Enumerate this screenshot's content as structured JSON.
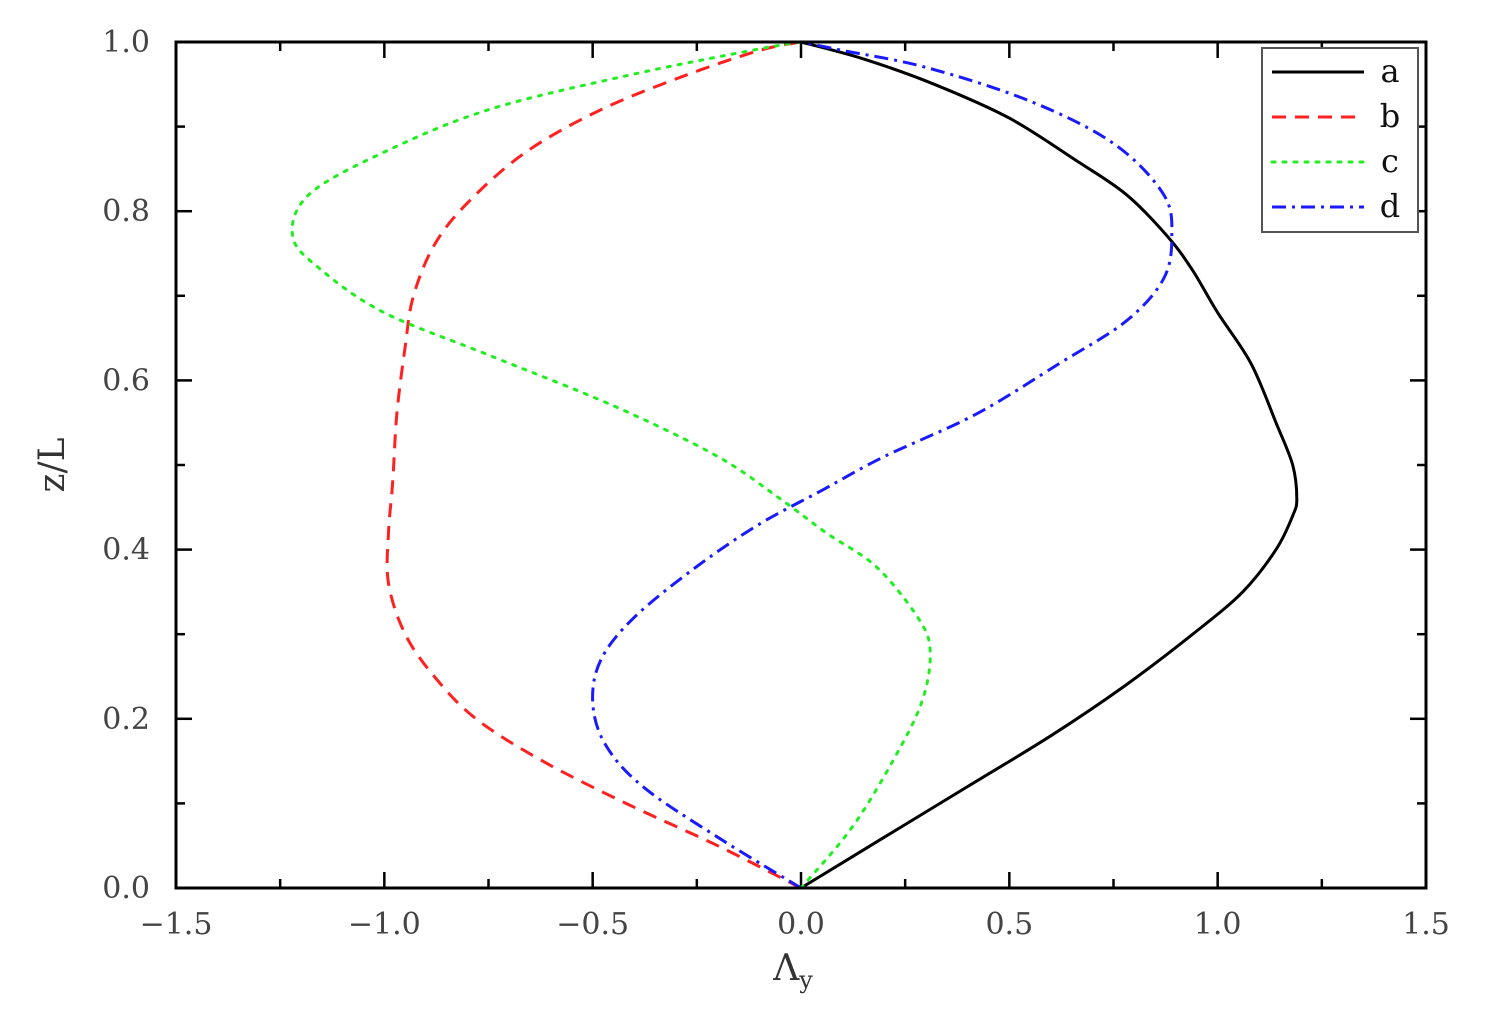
{
  "chart_data": {
    "type": "line",
    "title": "",
    "xlabel": "Λ",
    "xlabel_subscript": "y",
    "ylabel": "z/L",
    "xlim": [
      -1.5,
      1.5
    ],
    "ylim": [
      0.0,
      1.0
    ],
    "xticks": [
      "−1.5",
      "−1.0",
      "−0.5",
      "0.0",
      "0.5",
      "1.0",
      "1.5"
    ],
    "yticks": [
      "0.0",
      "0.2",
      "0.4",
      "0.6",
      "0.8",
      "1.0"
    ],
    "grid": false,
    "legend_position": "top-right",
    "series": [
      {
        "name": "a",
        "color": "#000000",
        "dash": "solid",
        "points": [
          [
            0.0,
            0.0
          ],
          [
            0.2,
            0.06
          ],
          [
            0.4,
            0.12
          ],
          [
            0.6,
            0.18
          ],
          [
            0.78,
            0.24
          ],
          [
            0.94,
            0.3
          ],
          [
            1.06,
            0.35
          ],
          [
            1.14,
            0.4
          ],
          [
            1.18,
            0.44
          ],
          [
            1.19,
            0.46
          ],
          [
            1.18,
            0.5
          ],
          [
            1.14,
            0.55
          ],
          [
            1.08,
            0.62
          ],
          [
            1.0,
            0.68
          ],
          [
            0.94,
            0.73
          ],
          [
            0.88,
            0.77
          ],
          [
            0.78,
            0.82
          ],
          [
            0.66,
            0.86
          ],
          [
            0.5,
            0.91
          ],
          [
            0.32,
            0.95
          ],
          [
            0.15,
            0.98
          ],
          [
            0.0,
            1.0
          ]
        ]
      },
      {
        "name": "b",
        "color": "#ff2020",
        "dash": "dashed",
        "points": [
          [
            0.0,
            0.0
          ],
          [
            -0.2,
            0.05
          ],
          [
            -0.42,
            0.1
          ],
          [
            -0.62,
            0.15
          ],
          [
            -0.78,
            0.2
          ],
          [
            -0.88,
            0.25
          ],
          [
            -0.95,
            0.3
          ],
          [
            -0.99,
            0.36
          ],
          [
            -0.99,
            0.42
          ],
          [
            -0.98,
            0.48
          ],
          [
            -0.97,
            0.56
          ],
          [
            -0.95,
            0.64
          ],
          [
            -0.93,
            0.7
          ],
          [
            -0.88,
            0.76
          ],
          [
            -0.8,
            0.81
          ],
          [
            -0.66,
            0.87
          ],
          [
            -0.48,
            0.92
          ],
          [
            -0.28,
            0.96
          ],
          [
            -0.1,
            0.99
          ],
          [
            0.0,
            1.0
          ]
        ]
      },
      {
        "name": "c",
        "color": "#20ee20",
        "dash": "dotted",
        "points": [
          [
            0.0,
            0.0
          ],
          [
            0.12,
            0.07
          ],
          [
            0.22,
            0.15
          ],
          [
            0.29,
            0.22
          ],
          [
            0.31,
            0.28
          ],
          [
            0.28,
            0.32
          ],
          [
            0.18,
            0.38
          ],
          [
            0.06,
            0.42
          ],
          [
            -0.05,
            0.46
          ],
          [
            -0.2,
            0.51
          ],
          [
            -0.45,
            0.57
          ],
          [
            -0.75,
            0.63
          ],
          [
            -1.0,
            0.68
          ],
          [
            -1.15,
            0.73
          ],
          [
            -1.22,
            0.77
          ],
          [
            -1.18,
            0.82
          ],
          [
            -1.0,
            0.87
          ],
          [
            -0.75,
            0.92
          ],
          [
            -0.42,
            0.96
          ],
          [
            -0.12,
            0.99
          ],
          [
            0.0,
            1.0
          ]
        ]
      },
      {
        "name": "d",
        "color": "#1a1aff",
        "dash": "dashdot",
        "points": [
          [
            0.0,
            0.0
          ],
          [
            -0.2,
            0.06
          ],
          [
            -0.38,
            0.12
          ],
          [
            -0.47,
            0.17
          ],
          [
            -0.5,
            0.22
          ],
          [
            -0.48,
            0.27
          ],
          [
            -0.4,
            0.32
          ],
          [
            -0.25,
            0.38
          ],
          [
            -0.1,
            0.43
          ],
          [
            0.05,
            0.47
          ],
          [
            0.2,
            0.51
          ],
          [
            0.42,
            0.56
          ],
          [
            0.62,
            0.62
          ],
          [
            0.78,
            0.67
          ],
          [
            0.87,
            0.72
          ],
          [
            0.89,
            0.77
          ],
          [
            0.87,
            0.82
          ],
          [
            0.75,
            0.88
          ],
          [
            0.55,
            0.93
          ],
          [
            0.3,
            0.97
          ],
          [
            0.1,
            0.99
          ],
          [
            0.0,
            1.0
          ]
        ]
      }
    ]
  }
}
